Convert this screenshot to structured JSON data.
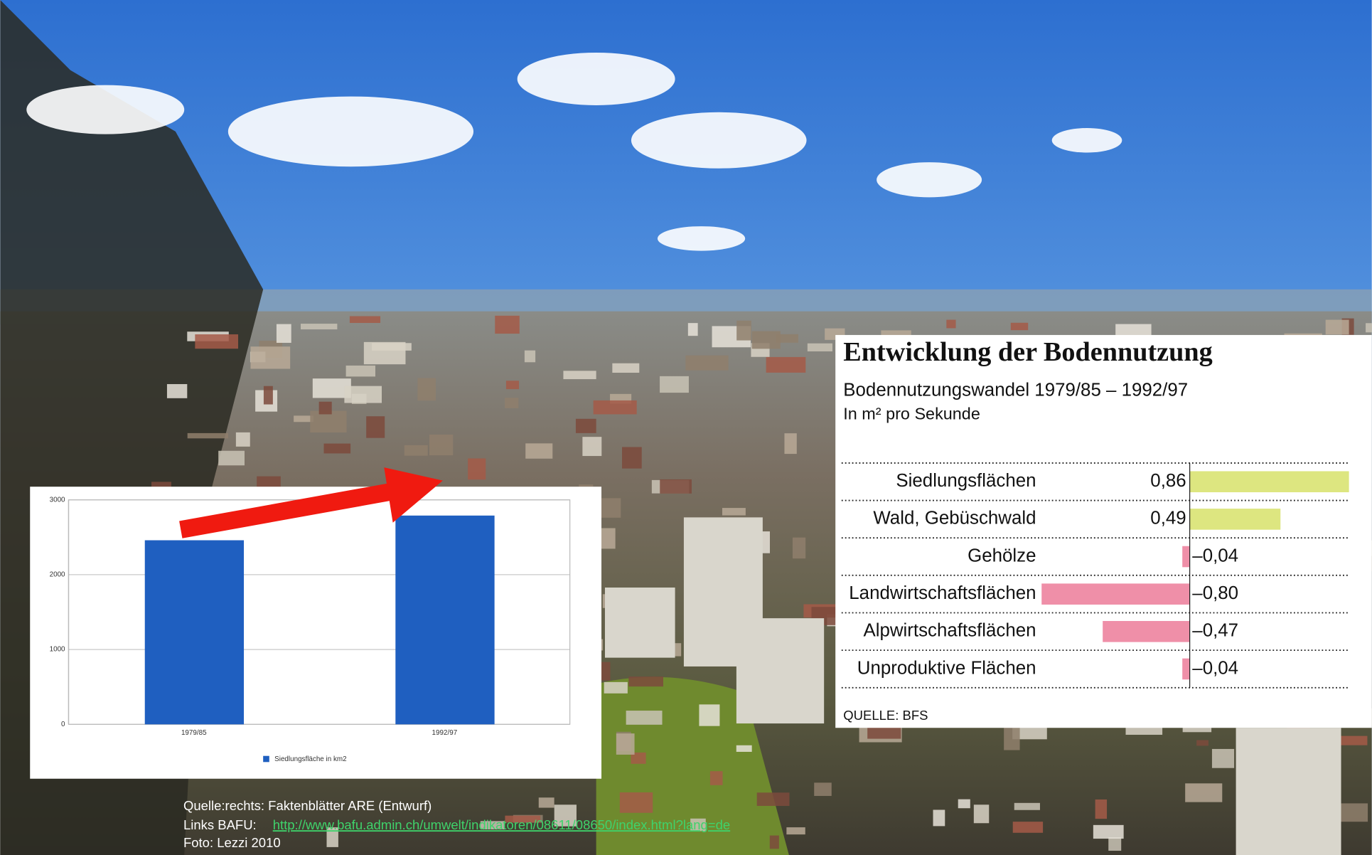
{
  "chart_data": [
    {
      "type": "bar",
      "categories": [
        "1979/85",
        "1992/97"
      ],
      "series": [
        {
          "name": "Siedlungsfläche in km2",
          "color": "#1f5fc0",
          "values": [
            2460,
            2790
          ]
        }
      ],
      "ylim": [
        0,
        3000
      ],
      "yticks": [
        0,
        1000,
        2000,
        3000
      ],
      "grid": true
    },
    {
      "type": "barh",
      "title": "Entwicklung der Bodennutzung",
      "subtitle": "Bodennutzungswandel 1979/85 – 1992/97",
      "unit_label": "In m² pro Sekunde",
      "source": "QUELLE: BFS",
      "categories": [
        "Siedlungsflächen",
        "Wald, Gebüschwald",
        "Gehölze",
        "Landwirtschaftsflächen",
        "Alpwirtschaftsflächen",
        "Unproduktive Flächen"
      ],
      "values": [
        0.86,
        0.49,
        -0.04,
        -0.8,
        -0.47,
        -0.04
      ],
      "value_labels": [
        "0,86",
        "0,49",
        "–0,04",
        "–0,80",
        "–0,47",
        "–0,04"
      ],
      "colors": {
        "positive": "#dde680",
        "negative": "#ef8fa8"
      },
      "xlim": [
        -1.0,
        0.86
      ]
    }
  ],
  "captions": {
    "source": "Quelle:rechts: Faktenblätter ARE (Entwurf)",
    "links_prefix": "Links BAFU:",
    "links_url": "http://www.bafu.admin.ch/umwelt/indikatoren/08611/08650/index.html?lang=de",
    "photo": "Foto: Lezzi 2010"
  }
}
